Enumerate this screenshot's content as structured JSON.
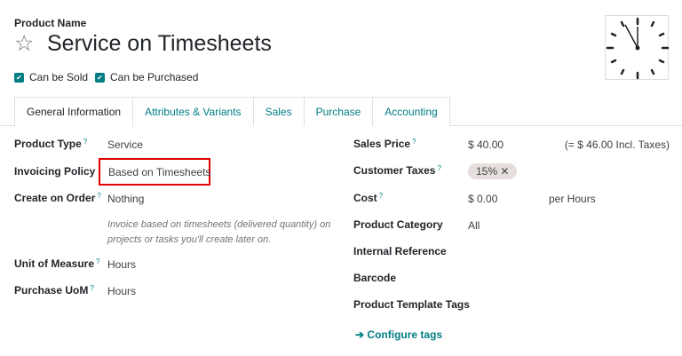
{
  "header": {
    "name_label": "Product Name",
    "title": "Service on Timesheets",
    "star_icon": "star-outline-icon",
    "image_icon": "clock-icon"
  },
  "checkboxes": [
    {
      "label": "Can be Sold",
      "checked": true
    },
    {
      "label": "Can be Purchased",
      "checked": true
    }
  ],
  "tabs": [
    "General Information",
    "Attributes & Variants",
    "Sales",
    "Purchase",
    "Accounting"
  ],
  "active_tab": "General Information",
  "left": {
    "product_type": {
      "label": "Product Type",
      "value": "Service"
    },
    "invoicing_policy": {
      "label": "Invoicing Policy",
      "value": "Based on Timesheets"
    },
    "create_on_order": {
      "label": "Create on Order",
      "value": "Nothing"
    },
    "help1": "Invoice based on timesheets (delivered quantity) on",
    "help2": "projects or tasks you'll create later on.",
    "uom": {
      "label": "Unit of Measure",
      "value": "Hours"
    },
    "purchase_uom": {
      "label": "Purchase UoM",
      "value": "Hours"
    }
  },
  "right": {
    "sales_price": {
      "label": "Sales Price",
      "value": "$ 40.00",
      "incl": "(= $ 46.00 Incl. Taxes)"
    },
    "customer_taxes": {
      "label": "Customer Taxes",
      "tag": "15%"
    },
    "cost": {
      "label": "Cost",
      "value": "$ 0.00",
      "unit": "per Hours"
    },
    "category": {
      "label": "Product Category",
      "value": "All"
    },
    "internal_ref": {
      "label": "Internal Reference"
    },
    "barcode": {
      "label": "Barcode"
    },
    "template_tags": {
      "label": "Product Template Tags"
    },
    "configure": "Configure tags"
  },
  "colors": {
    "accent": "#017e84",
    "highlight": "#e00000"
  }
}
